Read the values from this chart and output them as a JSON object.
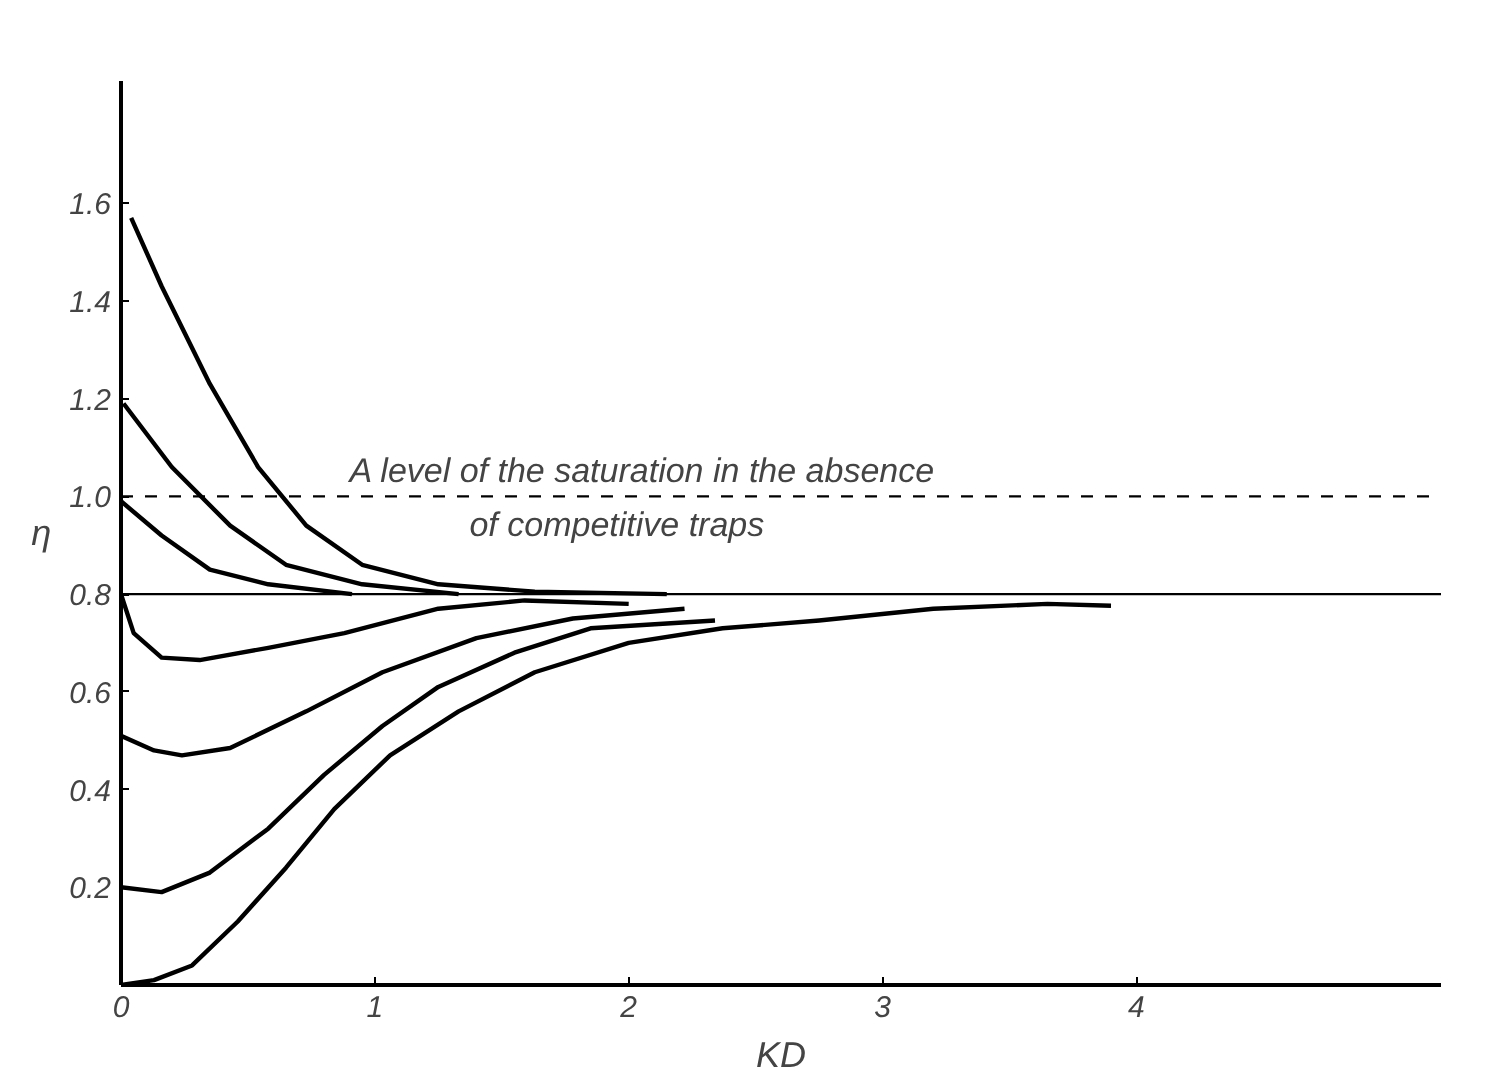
{
  "chart_data": {
    "type": "line",
    "xlabel": "KD",
    "ylabel": "η",
    "annotations": [
      "A level of the saturation in the absence\nof competitive traps"
    ],
    "xlim": [
      0,
      5.2
    ],
    "ylim": [
      0,
      1.85
    ],
    "xticks": [
      0,
      1,
      2,
      3,
      4
    ],
    "yticks": [
      0.2,
      0.4,
      0.6,
      0.8,
      {
        "value": 1.0,
        "label": "1.0"
      },
      1.2,
      1.4,
      1.6
    ],
    "grid": false,
    "line_style": "solid",
    "ref_lines": [
      {
        "axis": "y",
        "value": 0.8,
        "color": "#000000",
        "line_style": "solid"
      },
      {
        "axis": "y",
        "value": 1.0,
        "color": "#000000",
        "line_style": "dashed"
      }
    ],
    "series": [
      {
        "color": "#000000",
        "x": [
          0.04,
          0.16,
          0.35,
          0.54,
          0.73,
          0.95,
          1.25,
          1.63,
          2.15
        ],
        "values": [
          1.57,
          1.43,
          1.23,
          1.06,
          0.94,
          0.86,
          0.82,
          0.805,
          0.8
        ]
      },
      {
        "color": "#000000",
        "x": [
          0.01,
          0.2,
          0.43,
          0.65,
          0.95,
          1.33
        ],
        "values": [
          1.19,
          1.06,
          0.94,
          0.86,
          0.82,
          0.8
        ]
      },
      {
        "color": "#000000",
        "x": [
          0,
          0.16,
          0.35,
          0.58,
          0.91
        ],
        "values": [
          0.99,
          0.92,
          0.85,
          0.82,
          0.8
        ]
      },
      {
        "color": "#000000",
        "x": [
          0,
          0.05,
          0.16,
          0.31,
          0.58,
          0.88,
          1.25,
          1.59,
          2.0
        ],
        "values": [
          0.8,
          0.72,
          0.67,
          0.665,
          0.69,
          0.72,
          0.77,
          0.787,
          0.78
        ]
      },
      {
        "color": "#000000",
        "x": [
          0,
          0.13,
          0.24,
          0.43,
          0.73,
          1.03,
          1.4,
          1.78,
          2.22
        ],
        "values": [
          0.51,
          0.48,
          0.47,
          0.485,
          0.56,
          0.64,
          0.71,
          0.75,
          0.77
        ]
      },
      {
        "color": "#000000",
        "x": [
          0,
          0.16,
          0.35,
          0.58,
          0.8,
          1.03,
          1.25,
          1.55,
          1.85,
          2.34
        ],
        "values": [
          0.2,
          0.19,
          0.23,
          0.32,
          0.43,
          0.53,
          0.61,
          0.68,
          0.73,
          0.746
        ]
      },
      {
        "color": "#000000",
        "x": [
          0,
          0.13,
          0.28,
          0.46,
          0.65,
          0.84,
          1.06,
          1.33,
          1.63,
          2.0,
          2.37,
          2.75,
          3.2,
          3.65,
          3.9
        ],
        "values": [
          0.0,
          0.01,
          0.04,
          0.13,
          0.24,
          0.36,
          0.47,
          0.56,
          0.64,
          0.7,
          0.73,
          0.746,
          0.77,
          0.78,
          0.776
        ]
      }
    ]
  }
}
